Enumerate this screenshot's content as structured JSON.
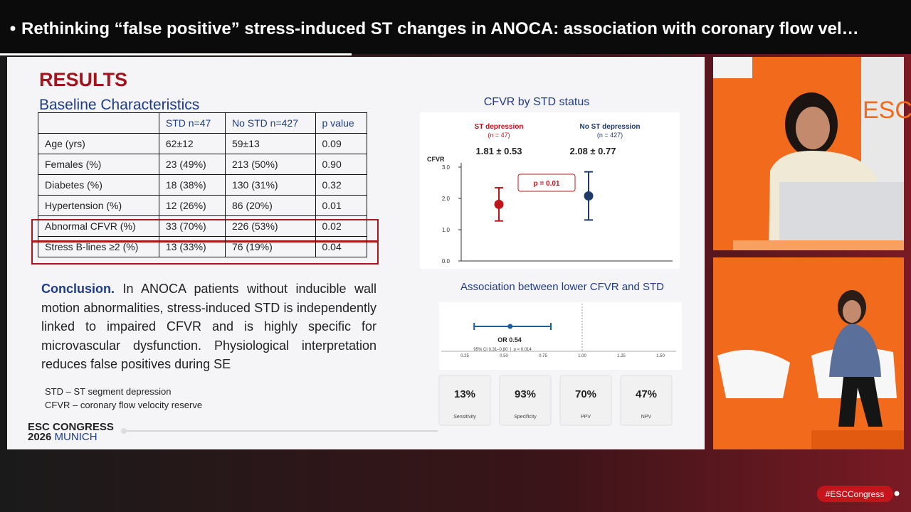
{
  "header": {
    "title": "Rethinking “false positive” stress-induced ST changes in ANOCA: association with coronary flow vel…"
  },
  "slide": {
    "heading": "RESULTS",
    "subheading": "Baseline Characteristics",
    "table": {
      "columns": [
        "STD n=47",
        "No STD n=427",
        "p value"
      ],
      "rows": [
        [
          "Age (yrs)",
          "62±12",
          "59±13",
          "0.09"
        ],
        [
          "Females (%)",
          "23 (49%)",
          "213 (50%)",
          "0.90"
        ],
        [
          "Diabetes (%)",
          "18 (38%)",
          "130 (31%)",
          "0.32"
        ],
        [
          "Hypertension (%)",
          "12 (26%)",
          "86 (20%)",
          "0.01"
        ],
        [
          "Abnormal CFVR (%)",
          "33 (70%)",
          "226 (53%)",
          "0.02"
        ],
        [
          "Stress B-lines ≥2 (%)",
          "13 (33%)",
          "76 (19%)",
          "0.04"
        ]
      ]
    },
    "conclusion": {
      "label": "Conclusion.",
      "text": "In ANOCA patients without inducible wall motion abnormalities, stress-induced STD is independently linked to impaired CFVR and is highly specific for microvascular dysfunction. Physiological interpretation reduces false positives during SE"
    },
    "abbreviations": [
      "STD – ST segment depression",
      "CFVR – coronary flow velocity reserve"
    ],
    "logo": {
      "line1": "ESC CONGRESS",
      "year": "2026",
      "city": "MUNICH"
    },
    "cfvr_chart": {
      "title": "CFVR by STD status",
      "ylabel": "CFVR",
      "ylim": [
        0,
        3
      ],
      "yticks": [
        {
          "value": 0,
          "label": "0.0"
        },
        {
          "value": 1,
          "label": "1.0"
        },
        {
          "value": 2,
          "label": "2.0"
        },
        {
          "value": 3,
          "label": "3.0"
        }
      ],
      "groups": [
        {
          "name": "ST depression",
          "n": "(n = 47)",
          "label": "1.81 ± 0.53",
          "mean": 1.81,
          "sd": 0.53,
          "color": "#c0141c"
        },
        {
          "name": "No ST depression",
          "n": "(n = 427)",
          "label": "2.08 ± 0.77",
          "mean": 2.08,
          "sd": 0.77,
          "color": "#1f3a68"
        }
      ],
      "annotation": "p = 0.01"
    },
    "forest": {
      "title": "Association between lower CFVR and STD",
      "label": "OR 0.54",
      "ci_label": "95% CI 0.31–0.80  |  p = 0.014",
      "or": 0.54,
      "ci": [
        0.31,
        0.8
      ],
      "xlim": [
        0.1,
        1.6
      ],
      "xticks": [
        0.25,
        {
          "value": 0.5,
          "label": "0.50"
        },
        0.75,
        {
          "value": 1,
          "label": "1.00"
        },
        1.25,
        {
          "value": 1.5,
          "label": "1.50"
        }
      ],
      "color": "#1f5f99"
    },
    "metrics": [
      {
        "value": "13%",
        "label": "Sensitivity"
      },
      {
        "value": "93%",
        "label": "Specificity"
      },
      {
        "value": "70%",
        "label": "PPV"
      },
      {
        "value": "47%",
        "label": "NPV"
      }
    ]
  },
  "footer": {
    "hashtag": "#ESCCongress"
  }
}
